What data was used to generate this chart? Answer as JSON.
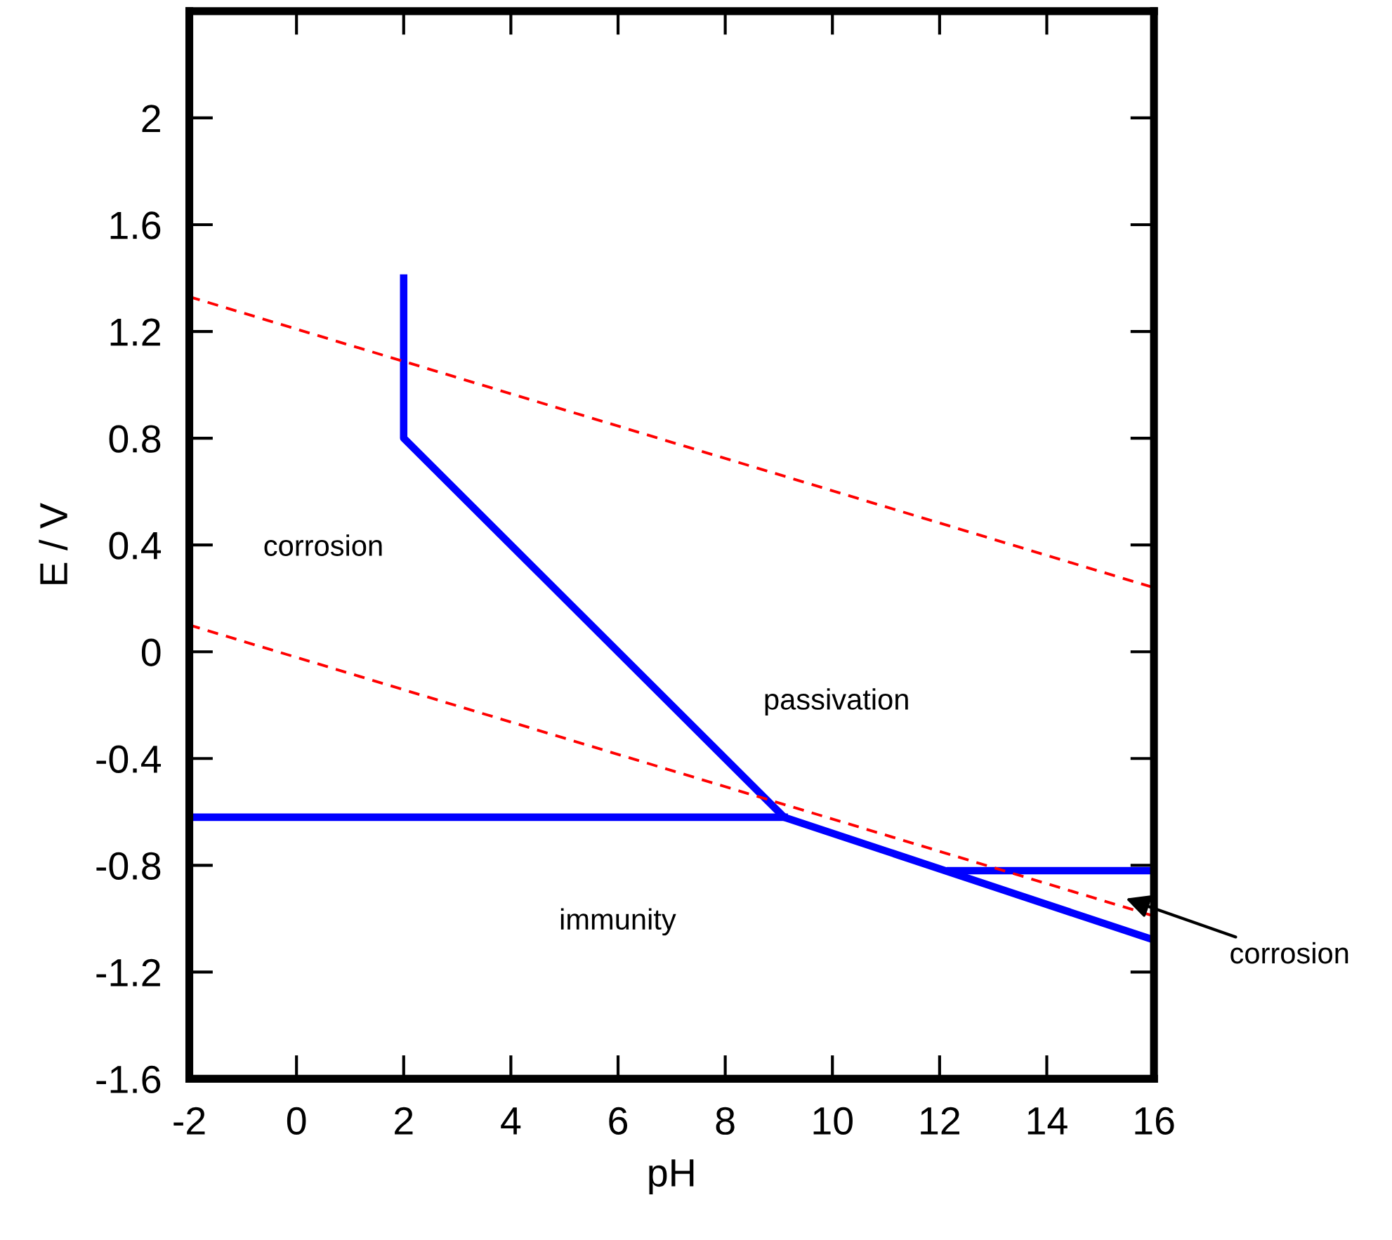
{
  "chart_data": {
    "type": "line",
    "xlabel": "pH",
    "ylabel": "E / V",
    "xlim": [
      -2,
      16
    ],
    "ylim": [
      -1.6,
      2.4
    ],
    "xticks": [
      -2,
      0,
      2,
      4,
      6,
      8,
      10,
      12,
      14,
      16
    ],
    "yticks": [
      -1.6,
      -1.2,
      -0.8,
      -0.4,
      0,
      0.4,
      0.8,
      1.2,
      1.6,
      2
    ],
    "grid": false,
    "legend": false,
    "marker": "none",
    "series": [
      {
        "color": "#0000ff",
        "line_style": "solid",
        "x": [
          2,
          2,
          9.1,
          16
        ],
        "values": [
          1.4,
          0.8,
          -0.62,
          -1.08
        ]
      },
      {
        "color": "#0000ff",
        "line_style": "solid",
        "x": [
          -2,
          9.1
        ],
        "values": [
          -0.62,
          -0.62
        ]
      },
      {
        "color": "#0000ff",
        "line_style": "solid",
        "x": [
          12.2,
          16
        ],
        "values": [
          -0.82,
          -0.82
        ]
      },
      {
        "color": "#ff0000",
        "line_style": "dashed",
        "x": [
          -2,
          16
        ],
        "values": [
          1.33,
          0.24
        ]
      },
      {
        "color": "#ff0000",
        "line_style": "dashed",
        "x": [
          -2,
          16
        ],
        "values": [
          0.1,
          -0.99
        ]
      }
    ],
    "annotations": [
      "corrosion",
      "passivation",
      "immunity",
      "corrosion"
    ]
  }
}
